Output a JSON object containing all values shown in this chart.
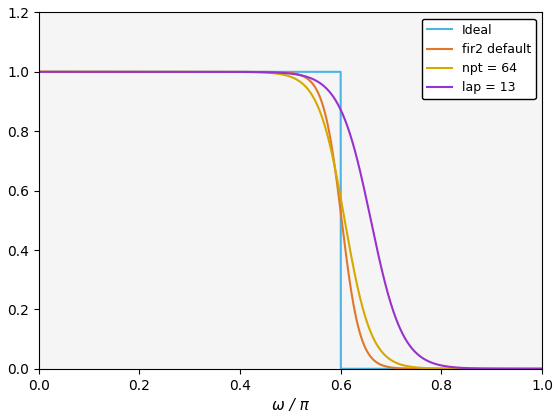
{
  "title": "",
  "xlabel": "ω / π",
  "xlim": [
    0,
    1
  ],
  "ylim": [
    0,
    1.2
  ],
  "xticks": [
    0,
    0.2,
    0.4,
    0.6,
    0.8,
    1.0
  ],
  "yticks": [
    0,
    0.2,
    0.4,
    0.6,
    0.8,
    1.0,
    1.2
  ],
  "ideal_cutoff": 0.6,
  "ideal_color": "#4db3e6",
  "fir2_color": "#e07828",
  "npt64_color": "#d4aa00",
  "lap13_color": "#9932CC",
  "legend_labels": [
    "Ideal",
    "fir2 default",
    "npt = 64",
    "lap = 13"
  ],
  "figsize": [
    5.6,
    4.2
  ],
  "dpi": 100,
  "fir2_cutoff": 0.602,
  "fir2_steepness": 55,
  "npt64_cutoff": 0.608,
  "npt64_steepness": 38,
  "lap13_cutoff": 0.66,
  "lap13_steepness": 32
}
